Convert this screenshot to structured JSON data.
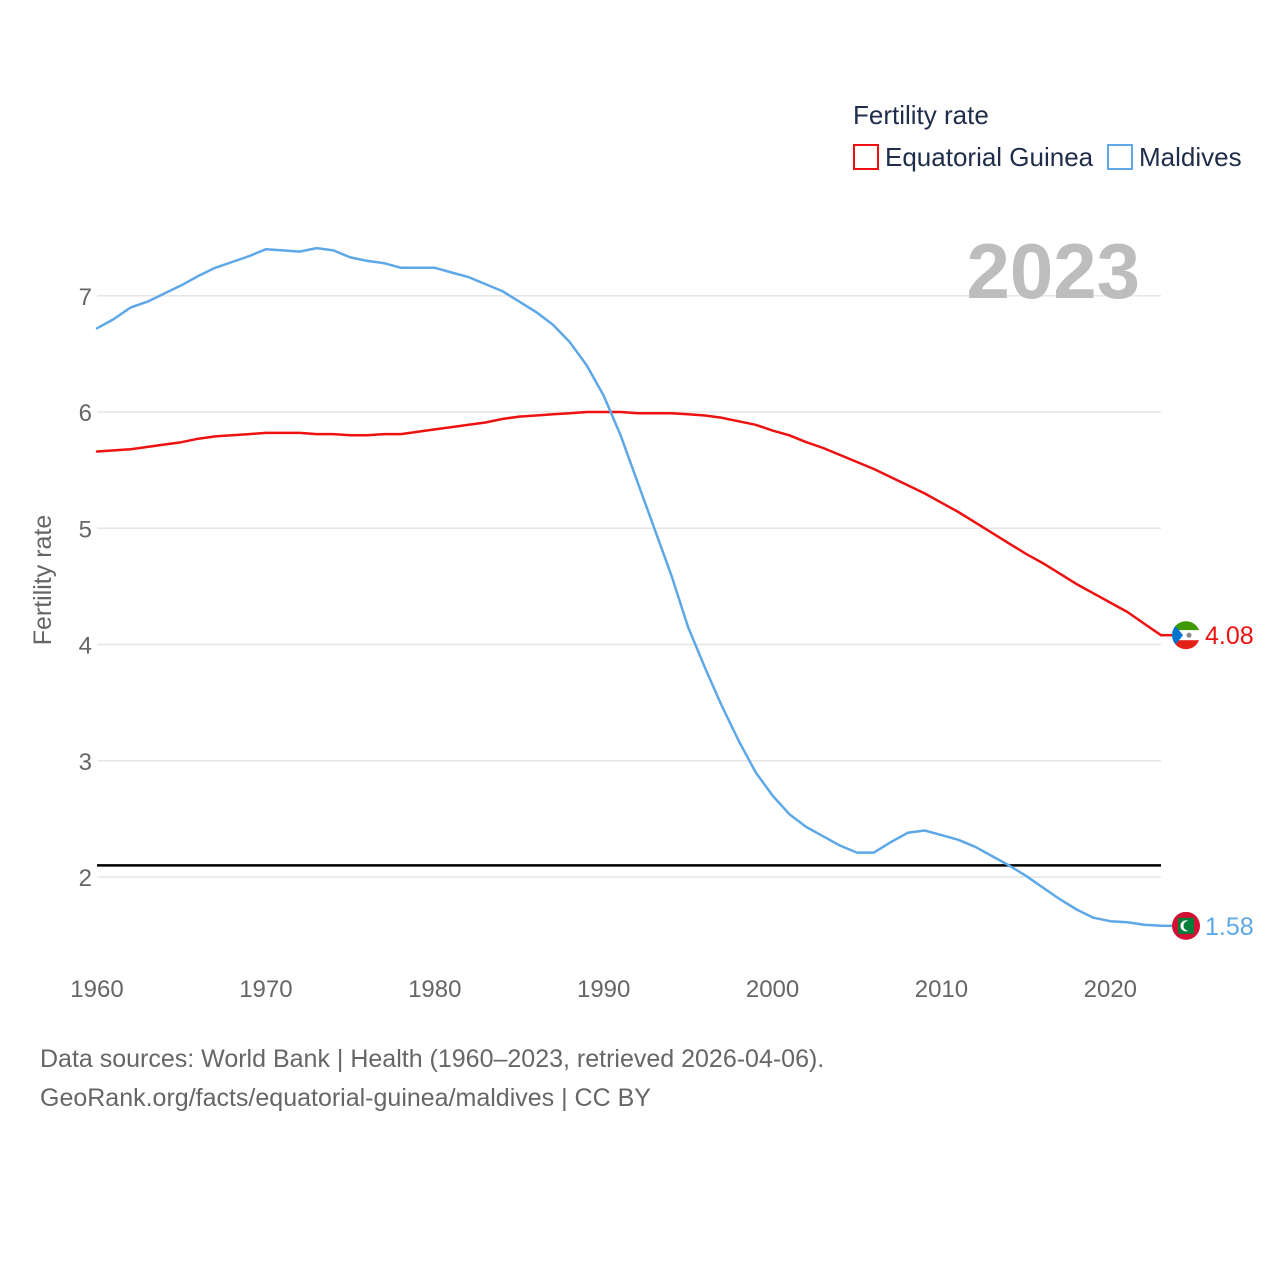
{
  "chart_data": {
    "type": "line",
    "legend_title": "Fertility rate",
    "ylabel": "Fertility rate",
    "year_label": "2023",
    "xlim": [
      1960,
      2023
    ],
    "ylim": [
      1.2,
      7.6
    ],
    "x_ticks": [
      1960,
      1970,
      1980,
      1990,
      2000,
      2010,
      2020
    ],
    "y_ticks": [
      2,
      3,
      4,
      5,
      6,
      7
    ],
    "reference_line": 2.1,
    "x": [
      1960,
      1961,
      1962,
      1963,
      1964,
      1965,
      1966,
      1967,
      1968,
      1969,
      1970,
      1971,
      1972,
      1973,
      1974,
      1975,
      1976,
      1977,
      1978,
      1979,
      1980,
      1981,
      1982,
      1983,
      1984,
      1985,
      1986,
      1987,
      1988,
      1989,
      1990,
      1991,
      1992,
      1993,
      1994,
      1995,
      1996,
      1997,
      1998,
      1999,
      2000,
      2001,
      2002,
      2003,
      2004,
      2005,
      2006,
      2007,
      2008,
      2009,
      2010,
      2011,
      2012,
      2013,
      2014,
      2015,
      2016,
      2017,
      2018,
      2019,
      2020,
      2021,
      2022,
      2023
    ],
    "series": [
      {
        "name": "Equatorial Guinea",
        "color": "#ee1111",
        "end_label": "4.08",
        "values": [
          5.66,
          5.67,
          5.68,
          5.7,
          5.72,
          5.74,
          5.77,
          5.79,
          5.8,
          5.81,
          5.82,
          5.82,
          5.82,
          5.81,
          5.81,
          5.8,
          5.8,
          5.81,
          5.81,
          5.83,
          5.85,
          5.87,
          5.89,
          5.91,
          5.94,
          5.96,
          5.97,
          5.98,
          5.99,
          6.0,
          6.0,
          6.0,
          5.99,
          5.99,
          5.99,
          5.98,
          5.97,
          5.95,
          5.92,
          5.89,
          5.84,
          5.8,
          5.74,
          5.69,
          5.63,
          5.57,
          5.51,
          5.44,
          5.37,
          5.3,
          5.22,
          5.14,
          5.05,
          4.96,
          4.87,
          4.78,
          4.7,
          4.61,
          4.52,
          4.44,
          4.36,
          4.28,
          4.18,
          4.08
        ]
      },
      {
        "name": "Maldives",
        "color": "#5ea8e8",
        "end_label": "1.58",
        "values": [
          6.72,
          6.8,
          6.9,
          6.95,
          7.02,
          7.09,
          7.17,
          7.24,
          7.29,
          7.34,
          7.4,
          7.39,
          7.38,
          7.41,
          7.39,
          7.33,
          7.3,
          7.28,
          7.24,
          7.24,
          7.24,
          7.2,
          7.16,
          7.1,
          7.04,
          6.95,
          6.86,
          6.75,
          6.6,
          6.4,
          6.14,
          5.8,
          5.4,
          5.0,
          4.6,
          4.15,
          3.8,
          3.47,
          3.17,
          2.9,
          2.7,
          2.54,
          2.43,
          2.35,
          2.27,
          2.21,
          2.21,
          2.3,
          2.38,
          2.4,
          2.36,
          2.32,
          2.26,
          2.18,
          2.1,
          2.01,
          1.91,
          1.81,
          1.72,
          1.65,
          1.62,
          1.61,
          1.59,
          1.58
        ]
      }
    ]
  },
  "footer": {
    "line1": "Data sources: World Bank | Health (1960–2023, retrieved 2026-04-06).",
    "line2": "GeoRank.org/facts/equatorial-guinea/maldives | CC BY"
  }
}
